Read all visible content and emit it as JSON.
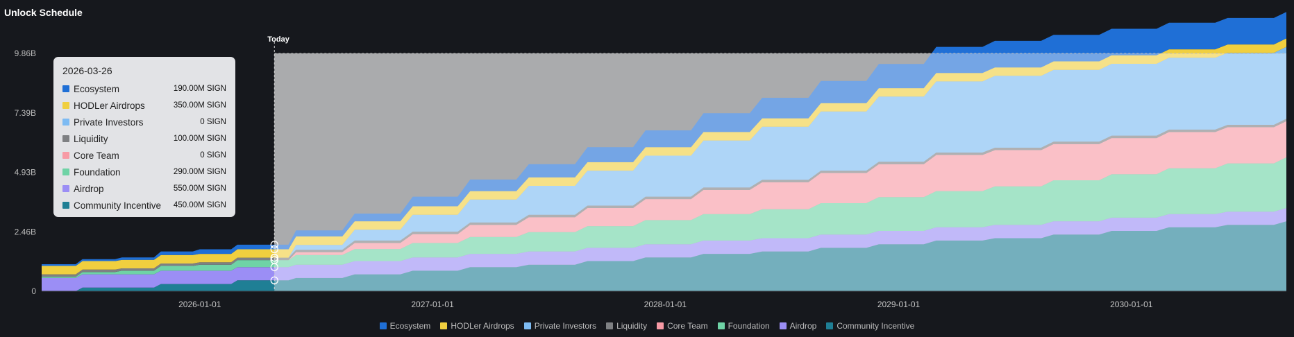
{
  "page": {
    "title": "Unlock Schedule",
    "today_label": "Today"
  },
  "chart_data": {
    "type": "area",
    "stacked": true,
    "title": "Unlock Schedule",
    "unit": "SIGN",
    "y_ticks": [
      "0",
      "2.46B",
      "4.93B",
      "7.39B",
      "9.86B"
    ],
    "ylim": [
      0,
      9860000000
    ],
    "x_ticks": [
      "2026-01-01",
      "2027-01-01",
      "2028-01-01",
      "2029-01-01",
      "2030-01-01"
    ],
    "xlim": [
      "2025-04-28",
      "2030-09-01"
    ],
    "today": "2026-04-28",
    "x": [
      "2025-04-28",
      "2025-06-01",
      "2025-07-01",
      "2025-08-01",
      "2025-09-01",
      "2025-10-01",
      "2025-11-01",
      "2025-12-01",
      "2026-01-01",
      "2026-02-01",
      "2026-03-01",
      "2026-04-28",
      "2026-06-01",
      "2026-09-01",
      "2026-12-01",
      "2027-03-01",
      "2027-06-01",
      "2027-09-01",
      "2027-12-01",
      "2028-03-01",
      "2028-06-01",
      "2028-09-01",
      "2028-12-01",
      "2029-03-01",
      "2029-06-01",
      "2029-09-01",
      "2029-12-01",
      "2030-03-01",
      "2030-06-01",
      "2030-09-01"
    ],
    "series": [
      {
        "name": "Community Incentive",
        "color": "#1f7f95",
        "values": [
          0.0,
          0.0,
          0.15,
          0.15,
          0.15,
          0.15,
          0.3,
          0.3,
          0.3,
          0.3,
          0.45,
          0.45,
          0.55,
          0.7,
          0.85,
          1.0,
          1.1,
          1.25,
          1.4,
          1.55,
          1.65,
          1.8,
          1.95,
          2.1,
          2.2,
          2.35,
          2.5,
          2.65,
          2.75,
          2.9
        ]
      },
      {
        "name": "Airdrop",
        "color": "#9b8ef5",
        "values": [
          0.55,
          0.55,
          0.55,
          0.55,
          0.55,
          0.55,
          0.55,
          0.55,
          0.55,
          0.55,
          0.55,
          0.55,
          0.55,
          0.55,
          0.55,
          0.55,
          0.55,
          0.55,
          0.55,
          0.55,
          0.55,
          0.55,
          0.55,
          0.55,
          0.55,
          0.55,
          0.55,
          0.55,
          0.55,
          0.55
        ]
      },
      {
        "name": "Foundation",
        "color": "#6fd3a6",
        "values": [
          0.05,
          0.05,
          0.1,
          0.1,
          0.15,
          0.15,
          0.2,
          0.2,
          0.25,
          0.25,
          0.29,
          0.29,
          0.4,
          0.5,
          0.6,
          0.7,
          0.8,
          0.9,
          1.0,
          1.1,
          1.2,
          1.3,
          1.4,
          1.5,
          1.6,
          1.7,
          1.8,
          1.9,
          2.0,
          2.1
        ]
      },
      {
        "name": "Core Team",
        "color": "#f79aa5",
        "values": [
          0.0,
          0.0,
          0.0,
          0.0,
          0.0,
          0.0,
          0.0,
          0.0,
          0.0,
          0.0,
          0.0,
          0.0,
          0.12,
          0.25,
          0.37,
          0.5,
          0.62,
          0.75,
          0.87,
          1.0,
          1.12,
          1.25,
          1.37,
          1.5,
          1.5,
          1.5,
          1.5,
          1.5,
          1.5,
          1.5
        ]
      },
      {
        "name": "Liquidity",
        "color": "#7e8083",
        "values": [
          0.1,
          0.1,
          0.1,
          0.1,
          0.1,
          0.1,
          0.1,
          0.1,
          0.1,
          0.1,
          0.1,
          0.1,
          0.1,
          0.1,
          0.1,
          0.1,
          0.1,
          0.1,
          0.1,
          0.1,
          0.1,
          0.1,
          0.1,
          0.1,
          0.1,
          0.1,
          0.1,
          0.1,
          0.1,
          0.1
        ]
      },
      {
        "name": "Private Investors",
        "color": "#7dbbf3",
        "values": [
          0.0,
          0.0,
          0.0,
          0.0,
          0.0,
          0.0,
          0.0,
          0.0,
          0.0,
          0.0,
          0.0,
          0.0,
          0.2,
          0.45,
          0.7,
          0.95,
          1.2,
          1.45,
          1.7,
          1.95,
          2.2,
          2.45,
          2.7,
          2.95,
          2.98,
          2.98,
          2.98,
          2.98,
          2.98,
          2.98
        ]
      },
      {
        "name": "HODLer Airdrops",
        "color": "#f0cf3f",
        "values": [
          0.35,
          0.35,
          0.35,
          0.35,
          0.35,
          0.35,
          0.35,
          0.35,
          0.35,
          0.35,
          0.35,
          0.35,
          0.35,
          0.35,
          0.35,
          0.35,
          0.35,
          0.35,
          0.35,
          0.35,
          0.35,
          0.35,
          0.35,
          0.35,
          0.35,
          0.35,
          0.35,
          0.35,
          0.35,
          0.35
        ]
      },
      {
        "name": "Ecosystem",
        "color": "#1f6fd6",
        "values": [
          0.07,
          0.07,
          0.08,
          0.08,
          0.1,
          0.1,
          0.15,
          0.15,
          0.19,
          0.19,
          0.19,
          0.19,
          0.25,
          0.32,
          0.4,
          0.48,
          0.55,
          0.62,
          0.7,
          0.78,
          0.85,
          0.92,
          1.0,
          1.08,
          1.1,
          1.1,
          1.1,
          1.1,
          1.1,
          1.1
        ]
      }
    ],
    "values_unit_note": "values in billions of SIGN",
    "legend": [
      "Ecosystem",
      "HODLer Airdrops",
      "Private Investors",
      "Liquidity",
      "Core Team",
      "Foundation",
      "Airdrop",
      "Community Incentive"
    ],
    "legend_position": "bottom",
    "grid": false
  },
  "tooltip": {
    "date": "2026-03-26",
    "rows": [
      {
        "name": "Ecosystem",
        "value": "190.00M SIGN",
        "color": "#1f6fd6"
      },
      {
        "name": "HODLer Airdrops",
        "value": "350.00M SIGN",
        "color": "#f0cf3f"
      },
      {
        "name": "Private Investors",
        "value": "0 SIGN",
        "color": "#7dbbf3"
      },
      {
        "name": "Liquidity",
        "value": "100.00M SIGN",
        "color": "#7e8083"
      },
      {
        "name": "Core Team",
        "value": "0 SIGN",
        "color": "#f79aa5"
      },
      {
        "name": "Foundation",
        "value": "290.00M SIGN",
        "color": "#6fd3a6"
      },
      {
        "name": "Airdrop",
        "value": "550.00M SIGN",
        "color": "#9b8ef5"
      },
      {
        "name": "Community Incentive",
        "value": "450.00M SIGN",
        "color": "#1f7f95"
      }
    ]
  }
}
